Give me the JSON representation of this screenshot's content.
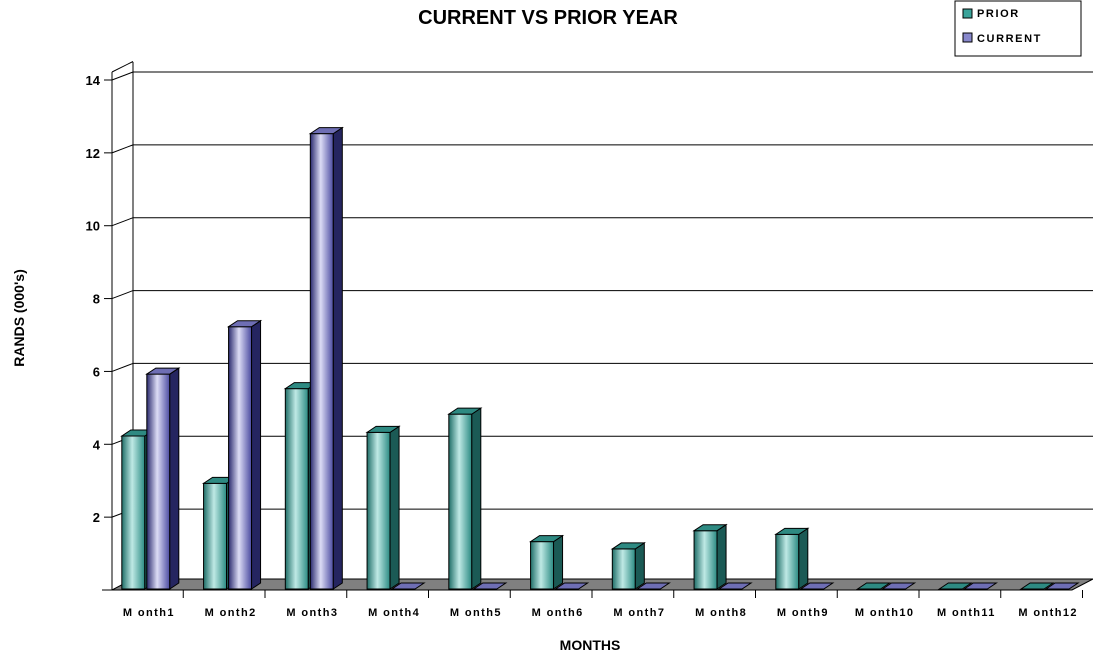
{
  "chart_data": {
    "type": "bar",
    "title": "CURRENT VS PRIOR YEAR",
    "xlabel": "MONTHS",
    "ylabel": "RANDS (000's)",
    "ylim": [
      0,
      14
    ],
    "yticks": [
      "2",
      "4",
      "6",
      "8",
      "10",
      "12",
      "14"
    ],
    "categories": [
      "M onth1",
      "M onth2",
      "M onth3",
      "M onth4",
      "M onth5",
      "M onth6",
      "M onth7",
      "M onth8",
      "M onth9",
      "M onth10",
      "M onth11",
      "M onth12"
    ],
    "series": [
      {
        "name": "PRIOR",
        "color": "#3aa39a",
        "values": [
          4.2,
          2.9,
          5.5,
          4.3,
          4.8,
          1.3,
          1.1,
          1.6,
          1.5,
          0,
          0,
          0
        ]
      },
      {
        "name": "CURRENT",
        "color": "#8888cc",
        "values": [
          5.9,
          7.2,
          12.5,
          0,
          0,
          0,
          0,
          0,
          0,
          0,
          0,
          0
        ]
      }
    ],
    "legend": "top-right",
    "grid": true,
    "style": "3d-column"
  }
}
